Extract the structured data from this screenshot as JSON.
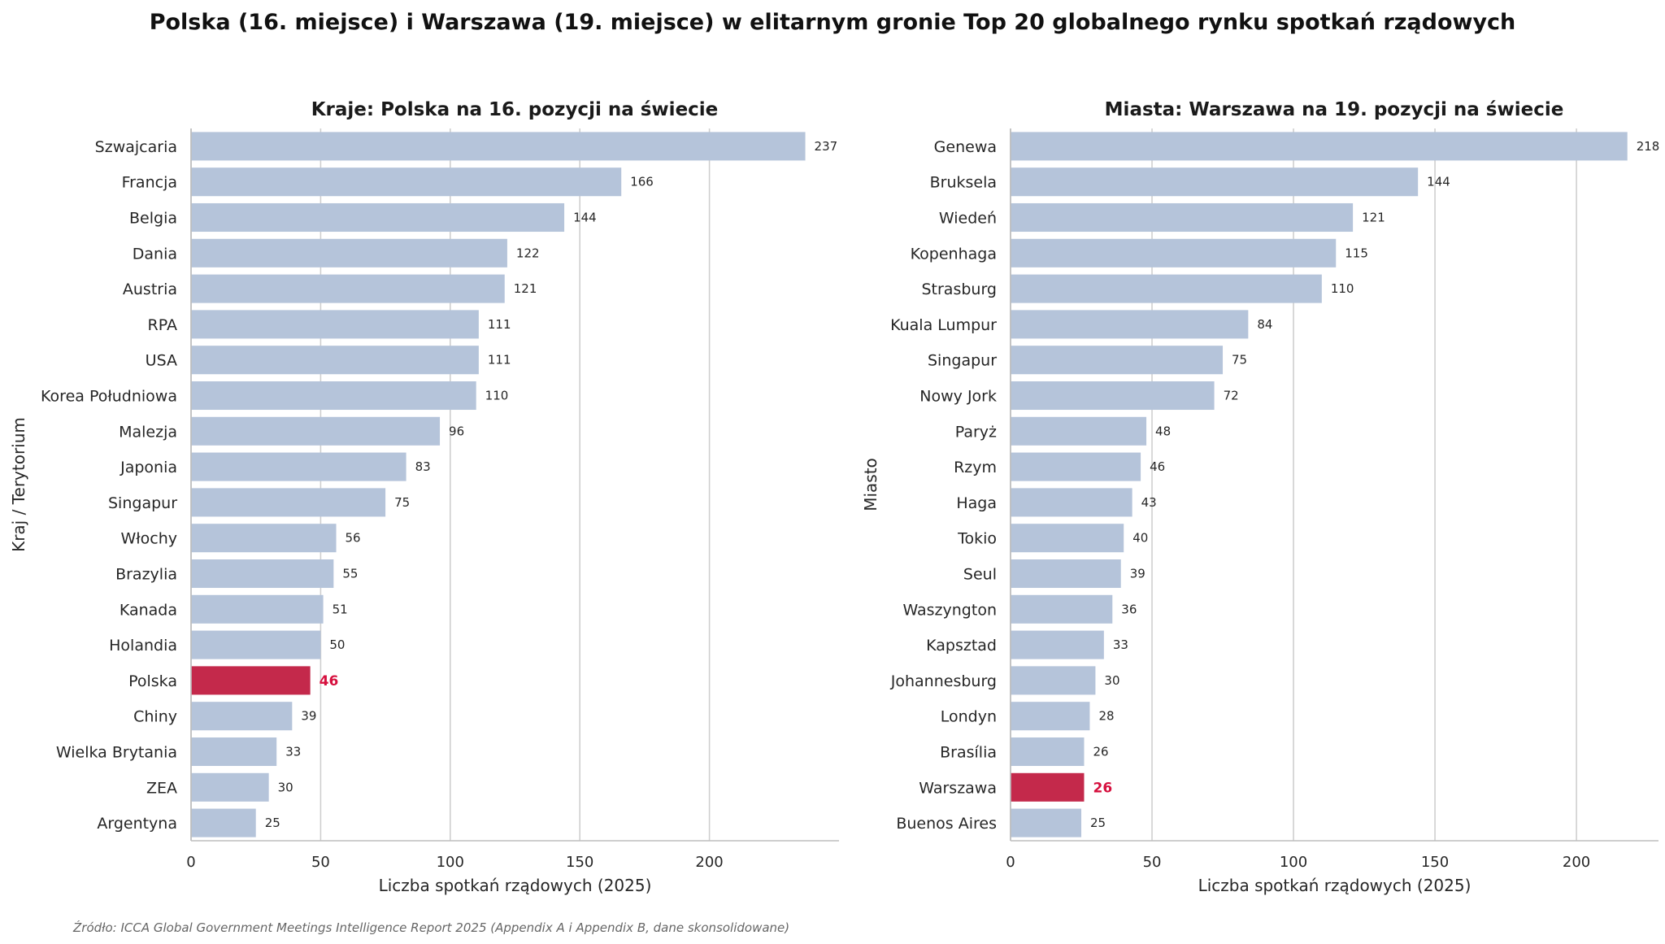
{
  "title": "Polska (16. miejsce) i Warszawa (19. miejsce) w elitarnym gronie Top 20 globalnego rynku spotkań rządowych",
  "source": "Źródło: ICCA Global Government Meetings Intelligence Report 2025 (Appendix A i Appendix B, dane skonsolidowane)",
  "colors": {
    "bar": "#b5c4da",
    "highlight": "#c4294b",
    "highlight_label": "#d6103e",
    "grid": "#cfcfcf",
    "axis": "#bdbdbd"
  },
  "chart_data": [
    {
      "type": "bar",
      "orientation": "horizontal",
      "title": "Kraje: Polska na 16. pozycji na świecie",
      "xlabel": "Liczba spotkań rządowych (2025)",
      "ylabel": "Kraj / Terytorium",
      "xlim": [
        0,
        250
      ],
      "xticks": [
        0,
        50,
        100,
        150,
        200
      ],
      "grid": "x",
      "highlight": "Polska",
      "categories": [
        "Szwajcaria",
        "Francja",
        "Belgia",
        "Dania",
        "Austria",
        "RPA",
        "USA",
        "Korea Południowa",
        "Malezja",
        "Japonia",
        "Singapur",
        "Włochy",
        "Brazylia",
        "Kanada",
        "Holandia",
        "Polska",
        "Chiny",
        "Wielka Brytania",
        "ZEA",
        "Argentyna"
      ],
      "values": [
        237,
        166,
        144,
        122,
        121,
        111,
        111,
        110,
        96,
        83,
        75,
        56,
        55,
        51,
        50,
        46,
        39,
        33,
        30,
        25
      ]
    },
    {
      "type": "bar",
      "orientation": "horizontal",
      "title": "Miasta: Warszawa na 19. pozycji na świecie",
      "xlabel": "Liczba spotkań rządowych (2025)",
      "ylabel": "Miasto",
      "xlim": [
        0,
        229
      ],
      "xticks": [
        0,
        50,
        100,
        150,
        200
      ],
      "grid": "x",
      "highlight": "Warszawa",
      "categories": [
        "Genewa",
        "Bruksela",
        "Wiedeń",
        "Kopenhaga",
        "Strasburg",
        "Kuala Lumpur",
        "Singapur",
        "Nowy Jork",
        "Paryż",
        "Rzym",
        "Haga",
        "Tokio",
        "Seul",
        "Waszyngton",
        "Kapsztad",
        "Johannesburg",
        "Londyn",
        "Brasília",
        "Warszawa",
        "Buenos Aires"
      ],
      "values": [
        218,
        144,
        121,
        115,
        110,
        84,
        75,
        72,
        48,
        46,
        43,
        40,
        39,
        36,
        33,
        30,
        28,
        26,
        26,
        25
      ]
    }
  ]
}
